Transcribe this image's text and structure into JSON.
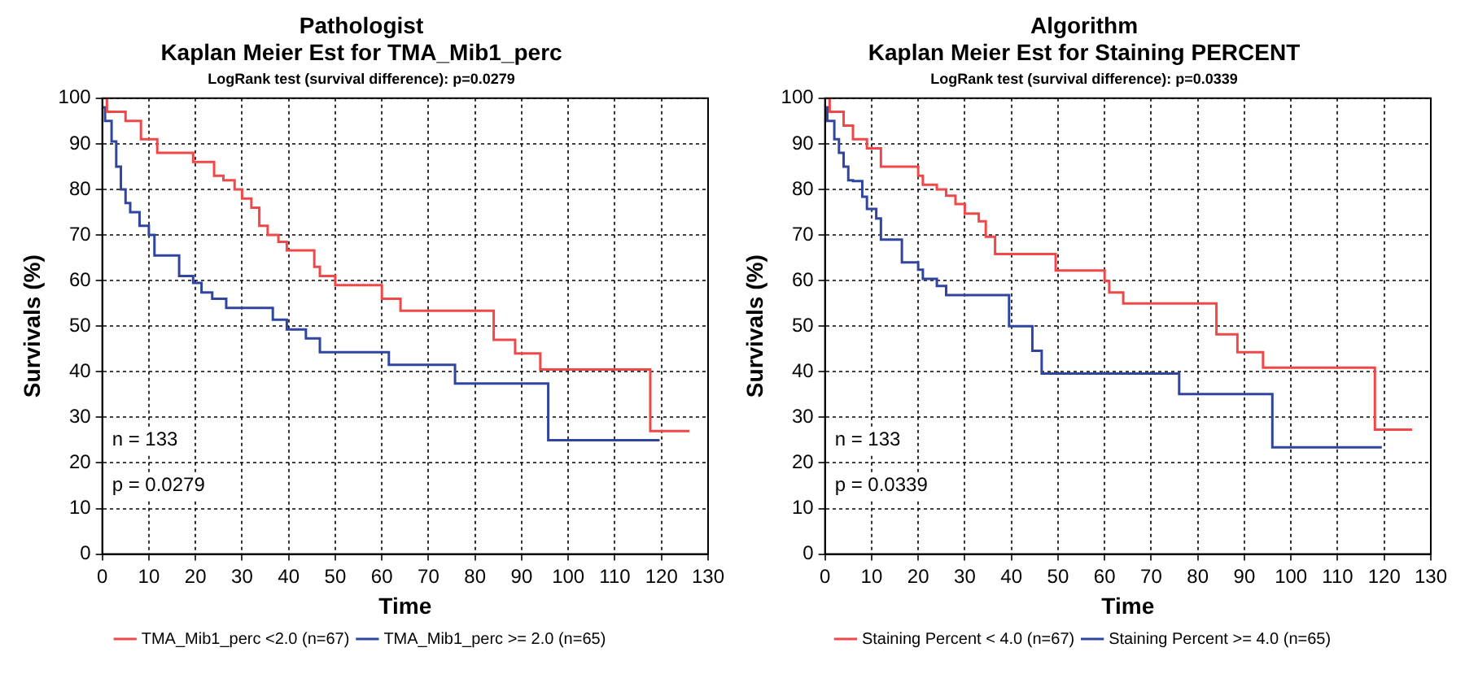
{
  "chart_data": [
    {
      "type": "step",
      "title": "Pathologist\nKaplan Meier Est for TMA_Mib1_perc",
      "subtitle": "LogRank test (survival difference): p=0.0279",
      "xlabel": "Time",
      "ylabel": "Survivals (%)",
      "xlim": [
        0,
        130
      ],
      "xticks": [
        0,
        10,
        20,
        30,
        40,
        50,
        60,
        70,
        80,
        90,
        100,
        110,
        120,
        130
      ],
      "ylim": [
        0,
        100
      ],
      "yticks": [
        0,
        10,
        20,
        30,
        40,
        50,
        60,
        70,
        80,
        90,
        100
      ],
      "grid": true,
      "legend": "bottom",
      "marker": "none",
      "line_style": "solid",
      "annotations": [
        "n = 133",
        "p = 0.0279"
      ],
      "series": [
        {
          "name": "TMA_Mib1_perc <2.0 (n=67)",
          "color": "#f04848",
          "x": [
            0,
            1,
            5,
            8.3,
            11.8,
            19.5,
            24,
            26,
            28.4,
            30,
            32,
            33.7,
            35.5,
            37.8,
            39.6,
            45.5,
            46.7,
            50,
            60,
            64,
            84,
            88.6,
            94,
            117.6,
            126
          ],
          "values": [
            100,
            97,
            95,
            91,
            88,
            86,
            83,
            82,
            80,
            78,
            76,
            72,
            70,
            68.5,
            66.6,
            63,
            61,
            59,
            56,
            53.4,
            47,
            44,
            40.5,
            27,
            27
          ]
        },
        {
          "name": "TMA_Mib1_perc >= 2.0 (n=65)",
          "color": "#2f45a0",
          "x": [
            0,
            0.6,
            2,
            3,
            4,
            5,
            6,
            8,
            10,
            11.2,
            16.5,
            19.5,
            21.3,
            23.6,
            26.6,
            36.6,
            39.6,
            43.7,
            46.7,
            61.5,
            75.7,
            95.7,
            119.6
          ],
          "values": [
            98,
            95,
            90.5,
            85,
            80,
            77,
            75,
            72,
            70,
            65.5,
            61,
            59.5,
            57.4,
            56,
            54,
            51.4,
            49.3,
            47.3,
            44.3,
            41.5,
            37.4,
            25,
            25
          ]
        }
      ]
    },
    {
      "type": "step",
      "title": "Algorithm\nKaplan Meier Est for Staining PERCENT",
      "subtitle": "LogRank test (survival difference): p=0.0339",
      "xlabel": "Time",
      "ylabel": "Survivals (%)",
      "xlim": [
        0,
        130
      ],
      "xticks": [
        0,
        10,
        20,
        30,
        40,
        50,
        60,
        70,
        80,
        90,
        100,
        110,
        120,
        130
      ],
      "ylim": [
        0,
        100
      ],
      "yticks": [
        0,
        10,
        20,
        30,
        40,
        50,
        60,
        70,
        80,
        90,
        100
      ],
      "grid": true,
      "legend": "bottom",
      "marker": "none",
      "line_style": "solid",
      "annotations": [
        "n = 133",
        "p = 0.0339"
      ],
      "series": [
        {
          "name": "Staining Percent < 4.0 (n=67)",
          "color": "#f04848",
          "x": [
            0,
            1,
            4,
            6,
            9,
            12,
            20,
            21,
            24,
            26,
            28,
            30,
            33,
            34.5,
            36.5,
            49.5,
            60,
            61,
            64,
            84,
            88.5,
            94,
            118,
            126
          ],
          "values": [
            100,
            97,
            94,
            91,
            89,
            85,
            83,
            81,
            80,
            78.6,
            76.8,
            74.7,
            73,
            69.6,
            65.8,
            62.2,
            59.9,
            57.4,
            55,
            48.2,
            44.3,
            40.9,
            27.3,
            27.3
          ]
        },
        {
          "name": "Staining Percent >= 4.0 (n=65)",
          "color": "#2f45a0",
          "x": [
            0,
            0.5,
            2,
            3,
            4,
            5,
            6,
            8,
            9,
            11,
            12,
            16.5,
            20,
            21,
            24,
            26,
            39.5,
            44.5,
            46.5,
            76,
            96,
            119.5
          ],
          "values": [
            98,
            95,
            91,
            88,
            85,
            82,
            81.8,
            78.4,
            75.7,
            73.6,
            69,
            64,
            62.4,
            60.4,
            58.8,
            56.8,
            50,
            44.6,
            39.6,
            35.1,
            23.4,
            23.4
          ]
        }
      ]
    }
  ]
}
